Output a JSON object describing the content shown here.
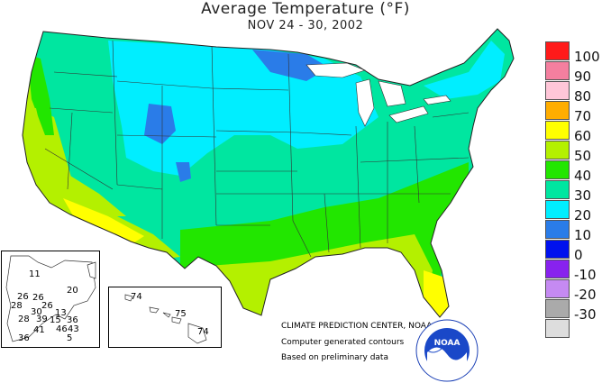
{
  "title": "Average Temperature (°F)",
  "subtitle": "NOV 24 - 30, 2002",
  "legend": [
    {
      "label": "100",
      "color": "#ff1a1a"
    },
    {
      "label": "90",
      "color": "#f47f9f"
    },
    {
      "label": "80",
      "color": "#ffc6d8"
    },
    {
      "label": "70",
      "color": "#ffad00"
    },
    {
      "label": "60",
      "color": "#ffff00"
    },
    {
      "label": "50",
      "color": "#b4f000"
    },
    {
      "label": "40",
      "color": "#22e600"
    },
    {
      "label": "30",
      "color": "#00e6a0"
    },
    {
      "label": "20",
      "color": "#00eeff"
    },
    {
      "label": "10",
      "color": "#2a7ce8"
    },
    {
      "label": "0",
      "color": "#0011ee"
    },
    {
      "label": "-10",
      "color": "#8822ee"
    },
    {
      "label": "-20",
      "color": "#c58af2"
    },
    {
      "label": "-30",
      "color": "#aaaaaa"
    },
    {
      "label": "",
      "color": "#dddddd"
    }
  ],
  "credits": {
    "line1": "CLIMATE PREDICTION CENTER, NOAA",
    "line2": "Computer generated contours",
    "line3": "Based on preliminary data"
  },
  "alaska_labels": [
    "11",
    "20",
    "26",
    "26",
    "26",
    "30",
    "13",
    "28",
    "28",
    "39",
    "15",
    "36",
    "41",
    "46",
    "43",
    "36",
    "5"
  ],
  "hawaii_labels": [
    "74",
    "75",
    "74"
  ],
  "logo_text": "NOAA"
}
